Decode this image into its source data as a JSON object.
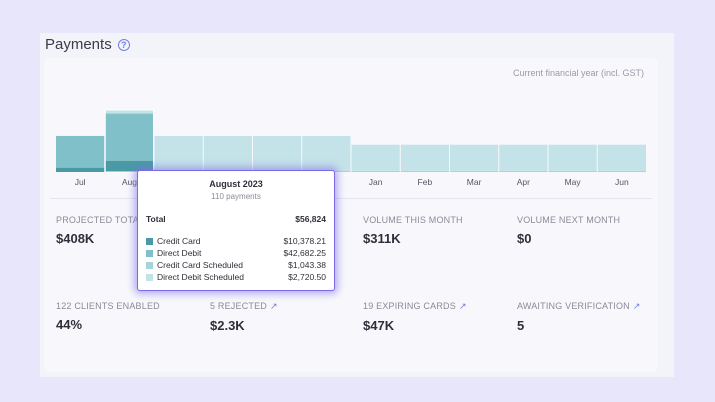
{
  "header": {
    "title": "Payments",
    "help_icon": "?"
  },
  "chart_note": "Current financial year (incl. GST)",
  "colors": {
    "credit_card": "#4a9aa5",
    "direct_debit": "#80c1c9",
    "credit_card_scheduled": "#a8d3d9",
    "direct_debit_scheduled": "#c4e3e8",
    "accent": "#7b6be8"
  },
  "chart_data": {
    "type": "bar",
    "stacked": true,
    "categories": [
      "Jul",
      "Aug",
      "Sep",
      "Oct",
      "Nov",
      "Dec",
      "Jan",
      "Feb",
      "Mar",
      "Apr",
      "May",
      "Jun"
    ],
    "series": [
      {
        "name": "Credit Card",
        "values": [
          4000,
          10378.21,
          0,
          0,
          0,
          0,
          0,
          0,
          0,
          0,
          0,
          0
        ]
      },
      {
        "name": "Direct Debit",
        "values": [
          29000,
          42682.25,
          0,
          0,
          0,
          0,
          0,
          0,
          0,
          0,
          0,
          0
        ]
      },
      {
        "name": "Credit Card Scheduled",
        "values": [
          0,
          1043.38,
          1000,
          1000,
          1000,
          1000,
          1000,
          1000,
          1000,
          1000,
          1000,
          1000
        ]
      },
      {
        "name": "Direct Debit Scheduled",
        "values": [
          0,
          2720.5,
          32000,
          32000,
          32000,
          32000,
          24000,
          24000,
          24000,
          24000,
          24000,
          24000
        ]
      }
    ],
    "ylim": [
      0,
      65000
    ],
    "grid": false,
    "legend": "none"
  },
  "tooltip": {
    "title": "August 2023",
    "subtitle": "110 payments",
    "total_label": "Total",
    "total_value": "$56,824",
    "rows": [
      {
        "label": "Credit Card",
        "value": "$10,378.21"
      },
      {
        "label": "Direct Debit",
        "value": "$42,682.25"
      },
      {
        "label": "Credit Card Scheduled",
        "value": "$1,043.38"
      },
      {
        "label": "Direct Debit Scheduled",
        "value": "$2,720.50"
      }
    ]
  },
  "stats": [
    {
      "label": "PROJECTED TOTAL",
      "value": "$408K",
      "link": false
    },
    {
      "label": "VOLUME THIS MONTH",
      "value": "$311K",
      "link": false
    },
    {
      "label": "VOLUME NEXT MONTH",
      "value": "$0",
      "link": false
    },
    {
      "label": "122 CLIENTS ENABLED",
      "value": "44%",
      "link": false
    },
    {
      "label": "5 REJECTED",
      "value": "$2.3K",
      "link": true
    },
    {
      "label": "19 EXPIRING CARDS",
      "value": "$47K",
      "link": true
    },
    {
      "label": "AWAITING VERIFICATION",
      "value": "5",
      "link": true
    }
  ]
}
